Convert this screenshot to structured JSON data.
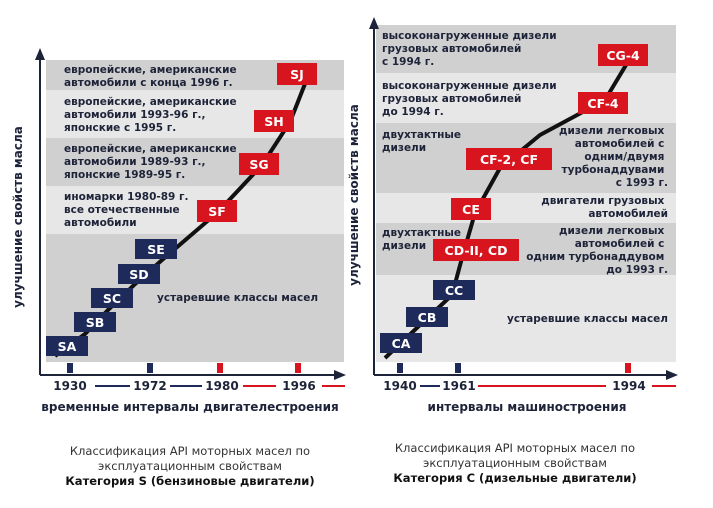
{
  "colors": {
    "band_dark": "#d0d0d0",
    "band_light": "#e7e7e7",
    "old_class": "#1e2a5a",
    "current_class": "#d8141e",
    "axis": "#1d2338",
    "timeline_blue": "#1e2a5a",
    "timeline_red": "#d8141e"
  },
  "left_panel": {
    "y_axis_title": "улучшение свойств масла",
    "x_axis_title": "временные интервалы двигателестроения",
    "years": [
      "1930",
      "1972",
      "1980",
      "1996"
    ],
    "band_texts": [
      [
        "европейские, американские",
        "автомобили с конца 1996 г."
      ],
      [
        "европейские, американские",
        "автомобили 1993-96 г.,",
        "японские с 1995 г."
      ],
      [
        "европейские, американские",
        "автомобили 1989-93 г.,",
        "японские 1989-95 г."
      ],
      [
        "иномарки 1980-89 г.",
        "все отечественные",
        "автомобили"
      ],
      [
        "устаревшие классы масел"
      ]
    ],
    "classes": [
      "SA",
      "SB",
      "SC",
      "SD",
      "SE",
      "SF",
      "SG",
      "SH",
      "SJ"
    ]
  },
  "right_panel": {
    "y_axis_title": "улучшение свойств масла",
    "x_axis_title": "интервалы машиностроения",
    "years": [
      "1940",
      "1961",
      "1994"
    ],
    "band_texts": [
      [
        "высоконагруженные дизели",
        "грузовых автомобилей",
        "с 1994 г."
      ],
      [
        "высоконагруженные дизели",
        "грузовых автомобилей",
        "до 1994 г."
      ],
      [
        "двухтактные",
        "дизели"
      ],
      [
        "дизели легковых",
        "автомобилей с",
        "одним/двумя",
        "турбонаддувами",
        "с 1993 г."
      ],
      [
        "двигатели грузовых",
        "автомобилей"
      ],
      [
        "двухтактные",
        "дизели"
      ],
      [
        "дизели легковых",
        "автомобилей с",
        "одним турбонаддувом",
        "до 1993 г."
      ],
      [
        "устаревшие классы масел"
      ]
    ],
    "classes": [
      "CA",
      "CB",
      "CC",
      "CD-II, CD",
      "CE",
      "CF-2, CF",
      "CF-4",
      "CG-4"
    ]
  },
  "captions": {
    "left": {
      "line1": "Классификация API моторных масел по",
      "line2": "эксплуатационным свойствам",
      "line3": "Категория S (бензиновые двигатели)"
    },
    "right": {
      "line1": "Классификация API моторных масел по",
      "line2": "эксплуатационным свойствам",
      "line3": "Категория С (дизельные двигатели)"
    }
  }
}
